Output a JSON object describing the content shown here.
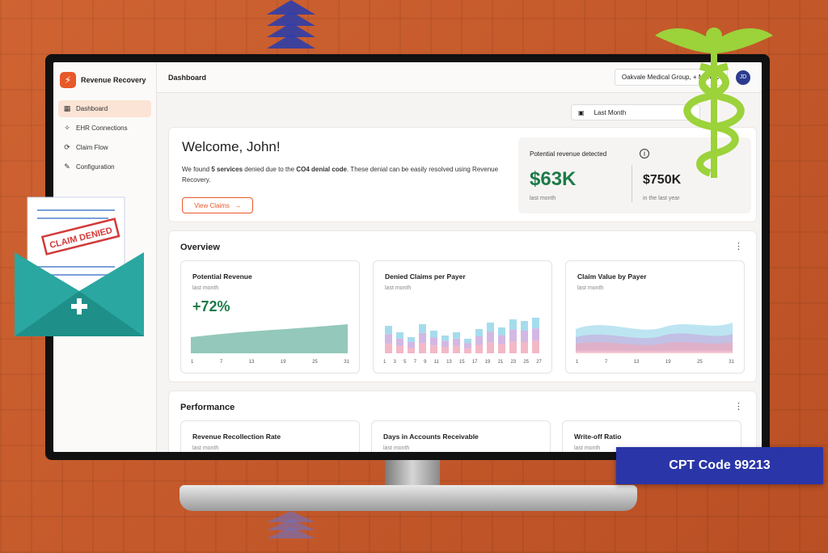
{
  "app": {
    "name": "Revenue Recovery",
    "logo_glyph": "⚡"
  },
  "sidebar": {
    "items": [
      {
        "label": "Dashboard",
        "icon": "grid-icon",
        "glyph": "▦",
        "active": true
      },
      {
        "label": "EHR Connections",
        "icon": "connection-icon",
        "glyph": "✧",
        "active": false
      },
      {
        "label": "Claim Flow",
        "icon": "flow-icon",
        "glyph": "⟳",
        "active": false
      },
      {
        "label": "Configuration",
        "icon": "wrench-icon",
        "glyph": "✎",
        "active": false
      }
    ]
  },
  "header": {
    "title": "Dashboard",
    "org": "Oakvale Medical Group, + More  ⌄",
    "avatar": "JD"
  },
  "period": {
    "icon": "calendar-icon",
    "label": "Last Month"
  },
  "welcome": {
    "heading": "Welcome, John!",
    "text_1": "We found ",
    "text_bold_1": "5 services",
    "text_2": " denied due to the ",
    "text_bold_2": "CO4 denial code",
    "text_3": ". These denial can be easily resolved using Revenue Recovery.",
    "button": "View Claims",
    "button_arrow": "→"
  },
  "revenue": {
    "label": "Potential revenue detected",
    "info_icon": "i",
    "last_month_value": "$63K",
    "last_month_label": "last month",
    "last_year_value": "$750K",
    "last_year_label": "in the last year"
  },
  "overview": {
    "title": "Overview",
    "menu": "⋮",
    "cards": [
      {
        "title": "Potential Revenue",
        "subtitle": "last month",
        "value": "+72%",
        "ticks": [
          "1",
          "7",
          "13",
          "19",
          "25",
          "31"
        ]
      },
      {
        "title": "Denied Claims per Payer",
        "subtitle": "last month",
        "ticks": [
          "1",
          "3",
          "5",
          "7",
          "9",
          "11",
          "13",
          "15",
          "17",
          "19",
          "21",
          "23",
          "25",
          "27"
        ]
      },
      {
        "title": "Claim Value by Payer",
        "subtitle": "last month",
        "ticks": [
          "1",
          "7",
          "13",
          "19",
          "25",
          "31"
        ]
      }
    ]
  },
  "performance": {
    "title": "Performance",
    "menu": "⋮",
    "cards": [
      {
        "title": "Revenue Recollection Rate",
        "subtitle": "last month"
      },
      {
        "title": "Days in Accounts Receivable",
        "subtitle": "last month"
      },
      {
        "title": "Write-off Ratio",
        "subtitle": "last month"
      }
    ]
  },
  "overlay": {
    "stamp": "CLAIM DENIED",
    "badge": "CPT Code 99213"
  },
  "colors": {
    "accent": "#e8592a",
    "green": "#1e7b4a",
    "background": "#c85a2c",
    "badge": "#2a35a8",
    "caduceus": "#9cd23a"
  }
}
